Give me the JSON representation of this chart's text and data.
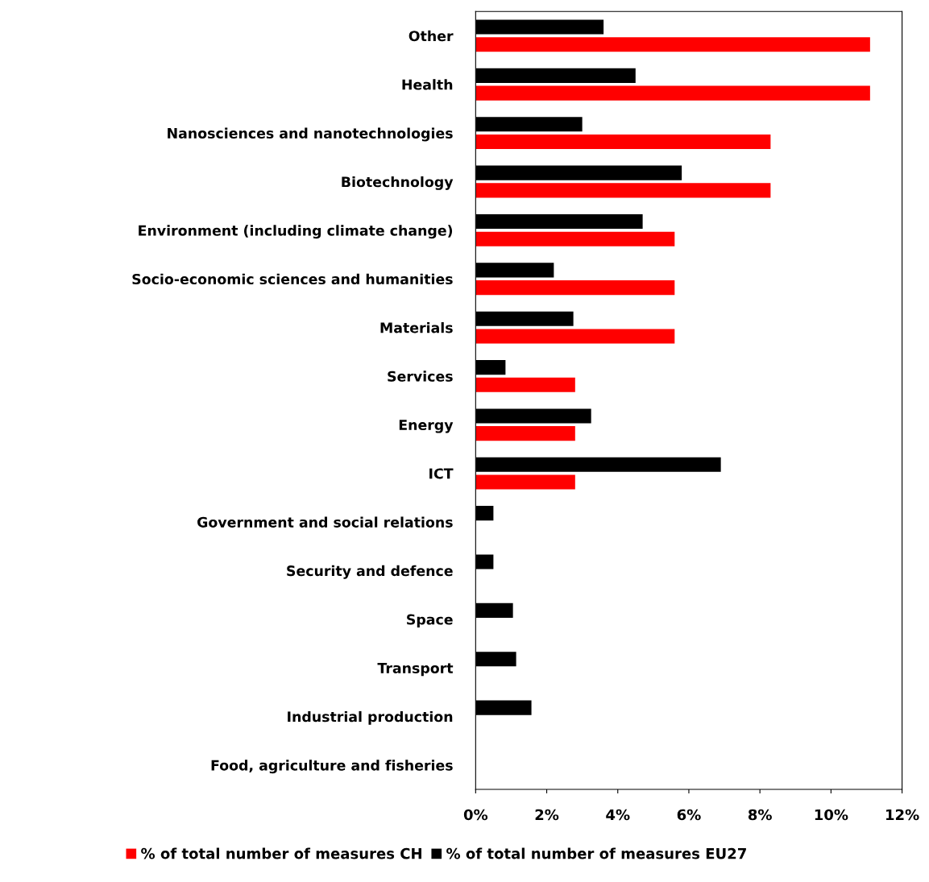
{
  "chart_data": {
    "type": "bar",
    "orientation": "horizontal",
    "categories": [
      "Other",
      "Health",
      "Nanosciences and nanotechnologies",
      "Biotechnology",
      "Environment (including climate change)",
      "Socio-economic sciences and humanities",
      "Materials",
      "Services",
      "Energy",
      "ICT",
      "Government and social relations",
      "Security and defence",
      "Space",
      "Transport",
      "Industrial production",
      "Food, agriculture and fisheries"
    ],
    "series": [
      {
        "name": "% of total number of measures CH",
        "color": "#ff0000",
        "values": [
          11.1,
          11.1,
          8.3,
          8.3,
          5.6,
          5.6,
          5.6,
          2.8,
          2.8,
          2.8,
          0,
          0,
          0,
          0,
          0,
          0
        ]
      },
      {
        "name": "% of total number of measures EU27",
        "color": "#000000",
        "values": [
          3.6,
          4.5,
          3.0,
          5.8,
          4.7,
          2.2,
          2.75,
          0.84,
          3.25,
          6.9,
          0.5,
          0.5,
          1.05,
          1.14,
          1.57,
          0
        ]
      }
    ],
    "xlim": [
      0,
      12
    ],
    "xticks": [
      {
        "value": 0,
        "label": "0%"
      },
      {
        "value": 2,
        "label": "2%"
      },
      {
        "value": 4,
        "label": "4%"
      },
      {
        "value": 6,
        "label": "6%"
      },
      {
        "value": 8,
        "label": "8%"
      },
      {
        "value": 10,
        "label": "10%"
      },
      {
        "value": 12,
        "label": "12%"
      }
    ],
    "grid": false,
    "legend": "bottom"
  }
}
